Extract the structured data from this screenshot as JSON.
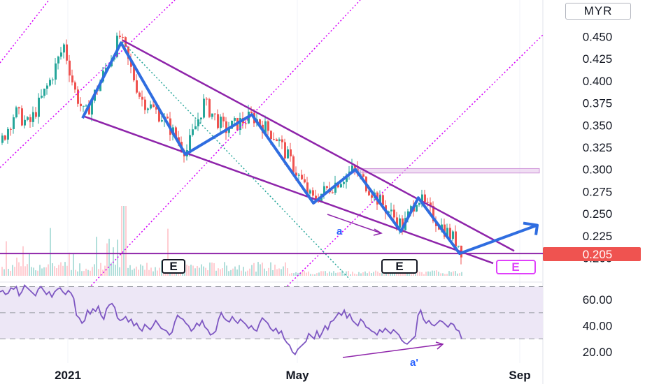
{
  "currency_button": "MYR",
  "colors": {
    "up": "#26a69a",
    "down": "#ef5350",
    "pattern": "#2f6de0",
    "channel": "#8e24aa",
    "pitchfork": "#d500f9",
    "dotted_green": "#26a69a",
    "rsi_line": "#7e57c2",
    "rsi_band": "#ede7f6",
    "price_label": "#ef5350"
  },
  "chart_data": [
    {
      "type": "candlestick",
      "title": "",
      "xlabel": "",
      "ylabel": "",
      "x_ticks": [
        "2021",
        "May",
        "Sep"
      ],
      "y_ticks": [
        "0.450",
        "0.425",
        "0.400",
        "0.375",
        "0.350",
        "0.325",
        "0.300",
        "0.275",
        "0.250",
        "0.225",
        "0.200"
      ],
      "ylim": [
        0.188,
        0.462
      ],
      "current_price": "0.205",
      "last_close": 0.205,
      "earnings_markers": [
        "E",
        "E",
        "E"
      ],
      "trend_annotations": [
        "a"
      ],
      "zigzag_pattern_prices": [
        0.358,
        0.443,
        0.317,
        0.362,
        0.262,
        0.3,
        0.23,
        0.268,
        0.205,
        0.237
      ],
      "channel_upper": {
        "from": 0.446,
        "to": 0.208
      },
      "channel_lower": {
        "from": 0.36,
        "to": 0.194
      },
      "resistance_zone": [
        0.296,
        0.301
      ],
      "support_level": 0.205
    },
    {
      "type": "line",
      "title": "",
      "indicator": "RSI",
      "y_ticks": [
        "60.00",
        "40.00",
        "20.00"
      ],
      "ylim": [
        14,
        74
      ],
      "band": [
        30,
        70
      ],
      "midline": 50,
      "annotation": "a'",
      "values": [
        66,
        67,
        64,
        65,
        69,
        68,
        70,
        63,
        66,
        71,
        69,
        67,
        65,
        63,
        68,
        70,
        67,
        64,
        66,
        62,
        66,
        68,
        69,
        66,
        64,
        67,
        65,
        61,
        48,
        46,
        42,
        44,
        52,
        49,
        53,
        51,
        55,
        48,
        45,
        53,
        56,
        57,
        54,
        46,
        44,
        45,
        47,
        43,
        45,
        40,
        42,
        38,
        36,
        41,
        39,
        37,
        40,
        44,
        41,
        38,
        37,
        36,
        33,
        35,
        43,
        48,
        46,
        45,
        42,
        40,
        36,
        38,
        42,
        40,
        44,
        39,
        37,
        33,
        34,
        36,
        45,
        50,
        46,
        44,
        43,
        47,
        44,
        42,
        45,
        43,
        41,
        38,
        40,
        37,
        36,
        42,
        46,
        44,
        42,
        38,
        36,
        38,
        34,
        36,
        30,
        27,
        25,
        20,
        18,
        22,
        24,
        26,
        28,
        34,
        32,
        30,
        36,
        31,
        35,
        40,
        37,
        43,
        44,
        47,
        50,
        48,
        52,
        46,
        49,
        44,
        42,
        40,
        45,
        43,
        39,
        38,
        36,
        35,
        33,
        37,
        35,
        38,
        36,
        34,
        37,
        35,
        33,
        29,
        27,
        26,
        28,
        30,
        32,
        48,
        52,
        45,
        42,
        44,
        41,
        40,
        42,
        44,
        43,
        41,
        39,
        42,
        41,
        37,
        36,
        30
      ]
    }
  ]
}
